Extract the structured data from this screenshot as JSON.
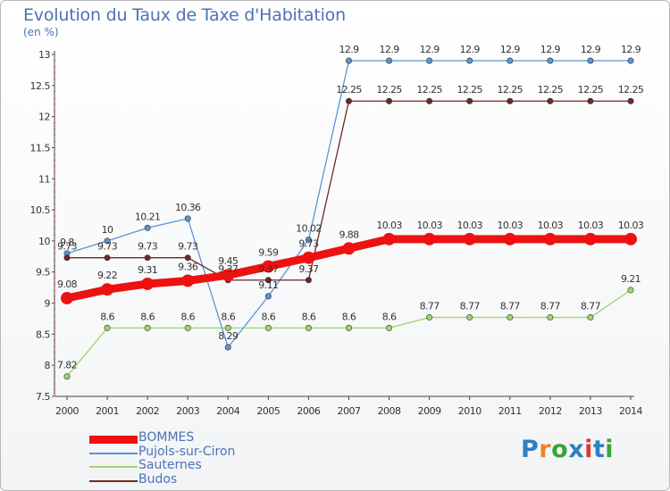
{
  "title": "Evolution du Taux de Taxe d'Habitation",
  "subtitle": "(en %)",
  "logo": {
    "text": "Proxiti",
    "colors": [
      "#2f7fc0",
      "#e8862a",
      "#3aa23a",
      "#2f7fc0",
      "#d8392b",
      "#2f7fc0",
      "#3aa23a"
    ]
  },
  "chart_data": {
    "type": "line",
    "title": "Evolution du Taux de Taxe d'Habitation",
    "ylabel": "(en %)",
    "xlabel": "",
    "x": [
      "2000",
      "2001",
      "2002",
      "2003",
      "2004",
      "2005",
      "2006",
      "2007",
      "2008",
      "2009",
      "2010",
      "2011",
      "2012",
      "2013",
      "2014"
    ],
    "ylim": [
      7.5,
      13
    ],
    "yticks": [
      "7.5",
      "8",
      "8.5",
      "9",
      "9.5",
      "10",
      "10.5",
      "11",
      "11.5",
      "12",
      "12.5",
      "13"
    ],
    "legend_position": "bottom-left",
    "series": [
      {
        "name": "BOMMES",
        "color": "#ee1111",
        "values": [
          9.08,
          9.22,
          9.31,
          9.36,
          9.45,
          9.59,
          9.73,
          9.88,
          10.03,
          10.03,
          10.03,
          10.03,
          10.03,
          10.03,
          10.03
        ],
        "labels": [
          "9.08",
          "9.22",
          "9.31",
          "9.36",
          "9.45",
          "9.59",
          "9.73",
          "9.88",
          "10.03",
          "10.03",
          "10.03",
          "10.03",
          "10.03",
          "10.03",
          "10.03"
        ]
      },
      {
        "name": "Pujols-sur-Ciron",
        "color": "#5b95cf",
        "values": [
          9.8,
          10,
          10.21,
          10.36,
          8.29,
          9.11,
          10.02,
          12.9,
          12.9,
          12.9,
          12.9,
          12.9,
          12.9,
          12.9,
          12.9
        ],
        "labels": [
          "9.8",
          "10",
          "10.21",
          "10.36",
          "8.29",
          "9.11",
          "10.02",
          "12.9",
          "12.9",
          "12.9",
          "12.9",
          "12.9",
          "12.9",
          "12.9",
          "12.9"
        ]
      },
      {
        "name": "Sauternes",
        "color": "#9ed56f",
        "values": [
          7.82,
          8.6,
          8.6,
          8.6,
          8.6,
          8.6,
          8.6,
          8.6,
          8.6,
          8.77,
          8.77,
          8.77,
          8.77,
          8.77,
          9.21
        ],
        "labels": [
          "7.82",
          "8.6",
          "8.6",
          "8.6",
          "8.6",
          "8.6",
          "8.6",
          "8.6",
          "8.6",
          "8.77",
          "8.77",
          "8.77",
          "8.77",
          "8.77",
          "9.21"
        ]
      },
      {
        "name": "Budos",
        "color": "#6b2a26",
        "values": [
          9.73,
          9.73,
          9.73,
          9.73,
          9.37,
          9.37,
          9.37,
          12.25,
          12.25,
          12.25,
          12.25,
          12.25,
          12.25,
          12.25,
          12.25
        ],
        "labels": [
          "9.73",
          "9.73",
          "9.73",
          "9.73",
          "9.37",
          "9.37",
          "9.37",
          "12.25",
          "12.25",
          "12.25",
          "12.25",
          "12.25",
          "12.25",
          "12.25",
          "12.25"
        ]
      }
    ]
  }
}
